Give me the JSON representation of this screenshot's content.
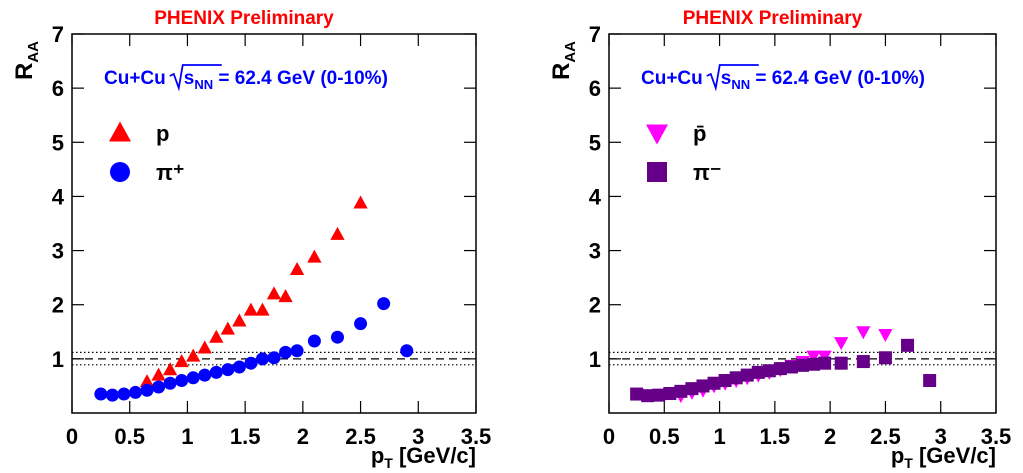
{
  "chart_data": [
    {
      "type": "scatter",
      "title": "PHENIX Preliminary",
      "annotation": {
        "system": "Cu+Cu",
        "sqrt_var": "s",
        "sqrt_sub": "NN",
        "rest": " = 62.4 GeV (0-10%)"
      },
      "ylabel": {
        "main": "R",
        "sub": "AA"
      },
      "xlabel": {
        "main": "p",
        "sub": "T",
        "rest": " [GeV/c]"
      },
      "xlim": [
        0,
        3.5
      ],
      "ylim": [
        0,
        7
      ],
      "xticks": [
        0,
        0.5,
        1,
        1.5,
        2,
        2.5,
        3,
        3.5
      ],
      "yticks": [
        1,
        2,
        3,
        4,
        5,
        6,
        7
      ],
      "hlines": [
        {
          "value": 1,
          "dash": "dashed"
        },
        {
          "value": 1.12,
          "dash": "dotted"
        },
        {
          "value": 0.89,
          "dash": "dotted"
        }
      ],
      "series": [
        {
          "name": "p",
          "color": "#ff0000",
          "marker": "triangle",
          "x": [
            0.65,
            0.75,
            0.85,
            0.95,
            1.05,
            1.15,
            1.25,
            1.35,
            1.45,
            1.55,
            1.65,
            1.75,
            1.85,
            1.95,
            2.1,
            2.3,
            2.5
          ],
          "values": [
            0.58,
            0.7,
            0.8,
            0.95,
            1.05,
            1.2,
            1.4,
            1.55,
            1.7,
            1.9,
            1.9,
            2.2,
            2.15,
            2.65,
            2.88,
            3.3,
            3.88
          ]
        },
        {
          "name": "π⁺",
          "color": "#0000ff",
          "marker": "circle",
          "x": [
            0.25,
            0.35,
            0.45,
            0.55,
            0.65,
            0.75,
            0.85,
            0.95,
            1.05,
            1.15,
            1.25,
            1.35,
            1.45,
            1.55,
            1.65,
            1.75,
            1.85,
            1.95,
            2.1,
            2.3,
            2.5,
            2.7,
            2.9
          ],
          "values": [
            0.35,
            0.33,
            0.35,
            0.38,
            0.42,
            0.48,
            0.55,
            0.6,
            0.65,
            0.7,
            0.75,
            0.8,
            0.85,
            0.92,
            1.0,
            1.02,
            1.12,
            1.15,
            1.33,
            1.4,
            1.65,
            2.02,
            1.15
          ]
        }
      ]
    },
    {
      "type": "scatter",
      "title": "PHENIX Preliminary",
      "annotation": {
        "system": "Cu+Cu",
        "sqrt_var": "s",
        "sqrt_sub": "NN",
        "rest": " = 62.4 GeV (0-10%)"
      },
      "ylabel": {
        "main": "R",
        "sub": "AA"
      },
      "xlabel": {
        "main": "p",
        "sub": "T",
        "rest": " [GeV/c]"
      },
      "xlim": [
        0,
        3.5
      ],
      "ylim": [
        0,
        7
      ],
      "xticks": [
        0,
        0.5,
        1,
        1.5,
        2,
        2.5,
        3,
        3.5
      ],
      "yticks": [
        1,
        2,
        3,
        4,
        5,
        6,
        7
      ],
      "hlines": [
        {
          "value": 1,
          "dash": "dashed"
        },
        {
          "value": 1.12,
          "dash": "dotted"
        },
        {
          "value": 0.89,
          "dash": "dotted"
        }
      ],
      "series": [
        {
          "name": "p̄",
          "color": "#ff00ff",
          "marker": "triangle-down",
          "x": [
            0.65,
            0.75,
            0.85,
            0.95,
            1.05,
            1.15,
            1.25,
            1.35,
            1.45,
            1.55,
            1.65,
            1.75,
            1.85,
            1.95,
            2.1,
            2.3,
            2.5
          ],
          "values": [
            0.32,
            0.38,
            0.42,
            0.5,
            0.55,
            0.6,
            0.65,
            0.7,
            0.75,
            0.8,
            0.88,
            0.95,
            1.05,
            1.05,
            1.3,
            1.5,
            1.45
          ]
        },
        {
          "name": "π⁻",
          "color": "#660088",
          "marker": "square",
          "x": [
            0.25,
            0.35,
            0.45,
            0.55,
            0.65,
            0.75,
            0.85,
            0.95,
            1.05,
            1.15,
            1.25,
            1.35,
            1.45,
            1.55,
            1.65,
            1.75,
            1.85,
            1.95,
            2.1,
            2.3,
            2.5,
            2.7,
            2.9
          ],
          "values": [
            0.35,
            0.32,
            0.33,
            0.36,
            0.4,
            0.45,
            0.5,
            0.55,
            0.6,
            0.65,
            0.7,
            0.75,
            0.78,
            0.82,
            0.85,
            0.88,
            0.9,
            0.92,
            0.92,
            0.95,
            1.02,
            1.25,
            0.6
          ]
        }
      ]
    }
  ]
}
